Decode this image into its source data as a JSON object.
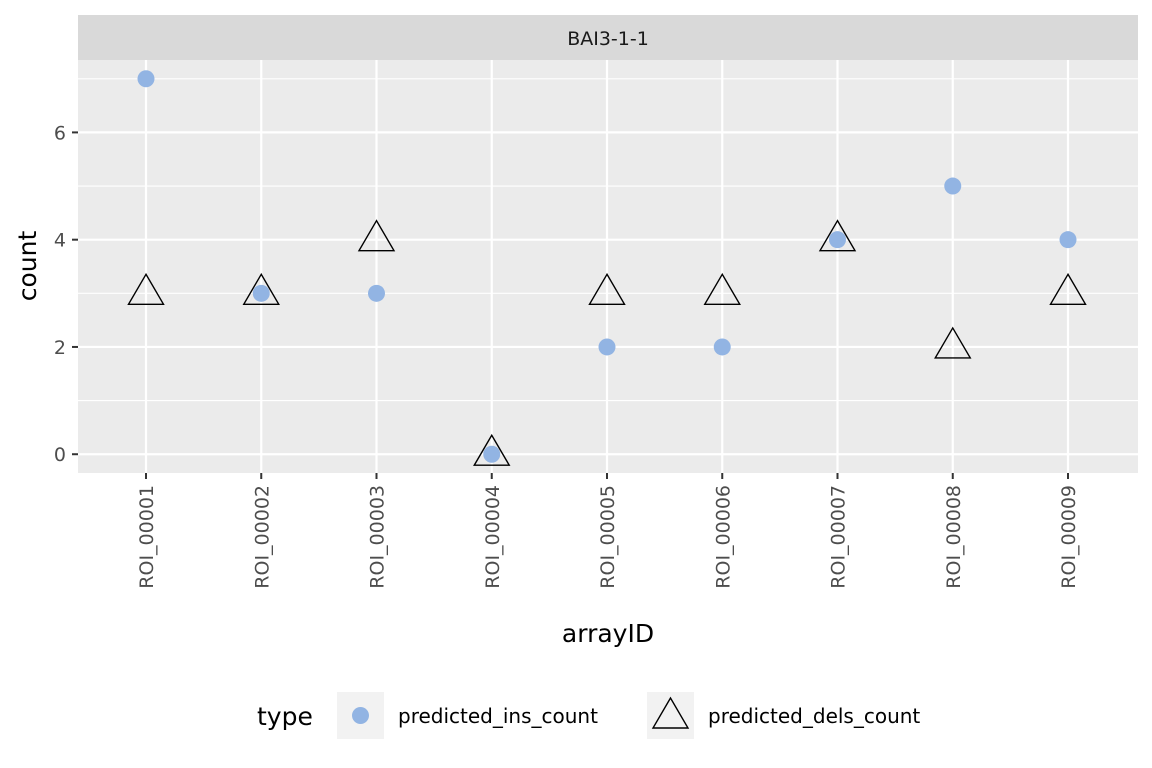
{
  "chart_data": {
    "type": "scatter",
    "facet_label": "BAI3-1-1",
    "xlabel": "arrayID",
    "ylabel": "count",
    "categories": [
      "ROI_00001",
      "ROI_00002",
      "ROI_00003",
      "ROI_00004",
      "ROI_00005",
      "ROI_00006",
      "ROI_00007",
      "ROI_00008",
      "ROI_00009"
    ],
    "ylim": [
      -0.35,
      7.35
    ],
    "y_ticks": [
      0,
      2,
      4,
      6
    ],
    "grid": true,
    "legend": {
      "title": "type",
      "placement": "bottom"
    },
    "series": [
      {
        "name": "predicted_ins_count",
        "marker": "circle",
        "color": "#92b4e3",
        "values": [
          7,
          3,
          3,
          0,
          2,
          2,
          4,
          5,
          4
        ]
      },
      {
        "name": "predicted_dels_count",
        "marker": "triangle-open",
        "color": "#000000",
        "values": [
          3,
          3,
          4,
          0,
          3,
          3,
          4,
          2,
          3
        ]
      }
    ],
    "colors": {
      "panel_bg": "#ebebeb",
      "strip_bg": "#d9d9d9",
      "grid": "#ffffff",
      "legend_key_bg": "#f2f2f2"
    }
  }
}
